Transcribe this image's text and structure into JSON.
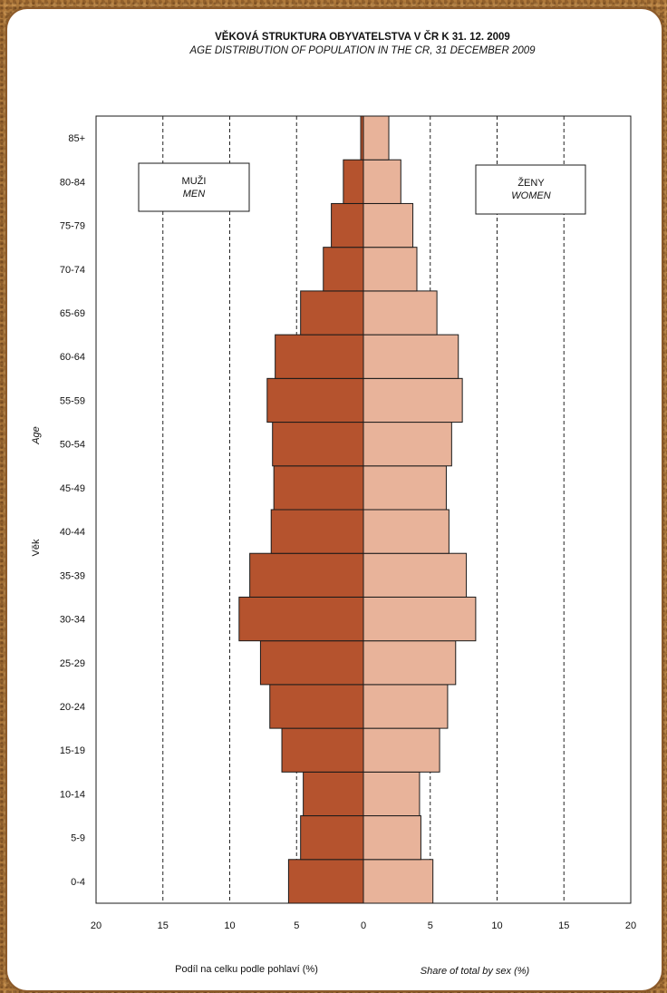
{
  "colors": {
    "men": "#b5532e",
    "women": "#e8b39a",
    "outline": "#1a1a1a",
    "frame_background": "#ffffff"
  },
  "chart_data": {
    "type": "bar",
    "orientation": "horizontal",
    "subtype": "population-pyramid",
    "title": "VĚKOVÁ STRUKTURA OBYVATELSTVA  V ČR K 31. 12. 2009",
    "subtitle": "AGE DISTRIBUTION OF POPULATION IN THE CR, 31 DECEMBER 2009",
    "xlabel_left": "Podíl na celku podle pohlaví (%)",
    "xlabel_right": "Share of total by sex (%)",
    "ylabel_en": "Age",
    "ylabel_cz": "Věk",
    "xlim": [
      -20,
      20
    ],
    "xticks": [
      20,
      15,
      10,
      5,
      0,
      5,
      10,
      15,
      20
    ],
    "grid": "vertical dashed",
    "categories": [
      "0-4",
      "5-9",
      "10-14",
      "15-19",
      "20-24",
      "25-29",
      "30-34",
      "35-39",
      "40-44",
      "45-49",
      "50-54",
      "55-59",
      "60-64",
      "65-69",
      "70-74",
      "75-79",
      "80-84",
      "85+"
    ],
    "series": [
      {
        "name_cz": "MUŽI",
        "name_en": "MEN",
        "values": [
          5.6,
          4.7,
          4.5,
          6.1,
          7.0,
          7.7,
          9.3,
          8.5,
          6.9,
          6.7,
          6.8,
          7.2,
          6.6,
          4.7,
          3.0,
          2.4,
          1.5,
          0.2
        ]
      },
      {
        "name_cz": "ŽENY",
        "name_en": "WOMEN",
        "values": [
          5.2,
          4.3,
          4.2,
          5.7,
          6.3,
          6.9,
          8.4,
          7.7,
          6.4,
          6.2,
          6.6,
          7.4,
          7.1,
          5.5,
          4.0,
          3.7,
          2.8,
          1.9
        ]
      }
    ]
  }
}
